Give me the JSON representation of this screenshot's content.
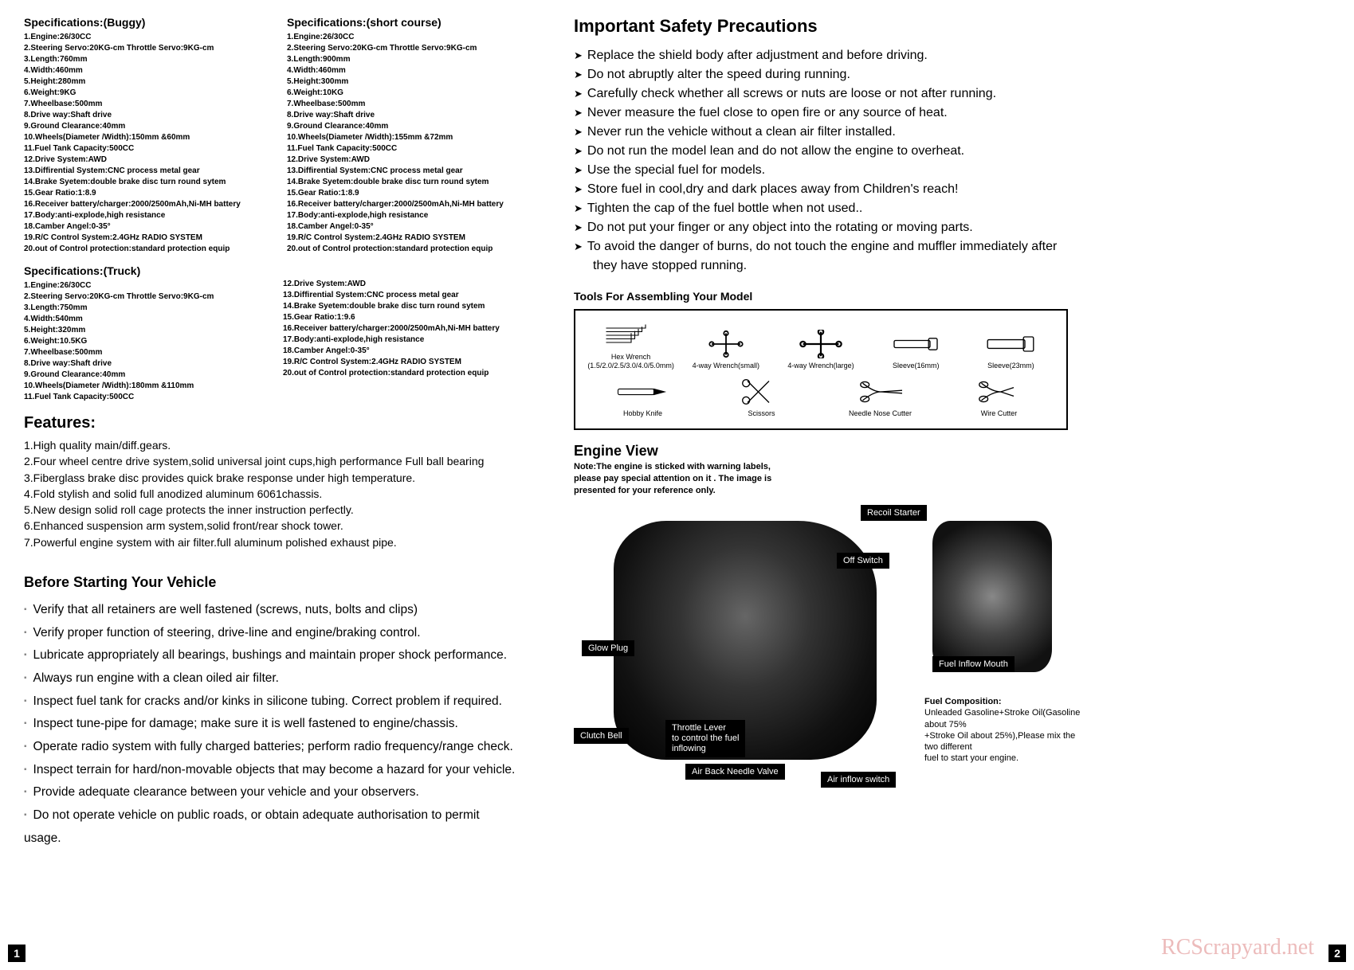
{
  "specs_buggy": {
    "title": "Specifications:(Buggy)",
    "items": [
      "1.Engine:26/30CC",
      "2.Steering Servo:20KG-cm  Throttle Servo:9KG-cm",
      "3.Length:760mm",
      "4.Width:460mm",
      "5.Height:280mm",
      "6.Weight:9KG",
      "7.Wheelbase:500mm",
      "8.Drive way:Shaft drive",
      "9.Ground Clearance:40mm",
      "10.Wheels(Diameter /Width):150mm &60mm",
      "11.Fuel Tank Capacity:500CC",
      "12.Drive System:AWD",
      "13.Diffirential System:CNC process metal gear",
      "14.Brake Syetem:double brake disc turn  round sytem",
      "15.Gear Ratio:1:8.9",
      "16.Receiver battery/charger:2000/2500mAh,Ni-MH battery",
      "17.Body:anti-explode,high resistance",
      "18.Camber Angel:0-35°",
      "19.R/C Control System:2.4GHz RADIO SYSTEM",
      "20.out of Control protection:standard protection equip"
    ]
  },
  "specs_short_course": {
    "title": "Specifications:(short course)",
    "items": [
      "1.Engine:26/30CC",
      "2.Steering Servo:20KG-cm  Throttle Servo:9KG-cm",
      "3.Length:900mm",
      "4.Width:460mm",
      "5.Height:300mm",
      "6.Weight:10KG",
      "7.Wheelbase:500mm",
      "8.Drive way:Shaft drive",
      "9.Ground Clearance:40mm",
      "10.Wheels(Diameter /Width):155mm &72mm",
      "11.Fuel Tank Capacity:500CC",
      "12.Drive System:AWD",
      "13.Diffirential System:CNC process metal gear",
      "14.Brake Syetem:double brake disc turn  round sytem",
      "15.Gear Ratio:1:8.9",
      "16.Receiver battery/charger:2000/2500mAh,Ni-MH battery",
      "17.Body:anti-explode,high resistance",
      "18.Camber Angel:0-35°",
      "19.R/C Control System:2.4GHz RADIO SYSTEM",
      "20.out of Control protection:standard protection equip"
    ]
  },
  "specs_truck": {
    "title": "Specifications:(Truck)",
    "left": [
      "1.Engine:26/30CC",
      "2.Steering Servo:20KG-cm  Throttle Servo:9KG-cm",
      "3.Length:750mm",
      "4.Width:540mm",
      "5.Height:320mm",
      "6.Weight:10.5KG",
      "7.Wheelbase:500mm",
      "8.Drive way:Shaft drive",
      "9.Ground Clearance:40mm",
      "10.Wheels(Diameter /Width):180mm &110mm",
      "11.Fuel Tank Capacity:500CC"
    ],
    "right": [
      "12.Drive System:AWD",
      "13.Diffirential System:CNC process metal gear",
      "14.Brake Syetem:double brake disc turn  round sytem",
      "15.Gear Ratio:1:9.6",
      "16.Receiver battery/charger:2000/2500mAh,Ni-MH battery",
      "17.Body:anti-explode,high resistance",
      "18.Camber Angel:0-35°",
      "19.R/C Control System:2.4GHz RADIO SYSTEM",
      "20.out of Control protection:standard protection equip"
    ]
  },
  "features": {
    "title": "Features:",
    "items": [
      "1.High quality main/diff.gears.",
      "2.Four wheel centre drive system,solid universal joint cups,high performance Full ball bearing",
      "3.Fiberglass brake disc provides quick brake response under high temperature.",
      "4.Fold stylish and solid full anodized aluminum 6061chassis.",
      "5.New design solid roll cage protects the inner instruction perfectly.",
      "6.Enhanced suspension arm system,solid front/rear shock tower.",
      "7.Powerful engine system with air filter.full aluminum polished exhaust pipe."
    ]
  },
  "before": {
    "title": "Before Starting Your Vehicle",
    "items": [
      "Verify that all retainers are well fastened (screws, nuts, bolts and clips)",
      "Verify proper function of steering, drive-line and engine/braking control.",
      "Lubricate appropriately all bearings, bushings and maintain proper shock performance.",
      "Always run engine with a clean oiled air filter.",
      "Inspect fuel tank for cracks and/or kinks in silicone tubing. Correct problem if required.",
      "Inspect tune-pipe for damage; make sure it is well fastened to engine/chassis.",
      "Operate radio system with fully charged batteries; perform radio  frequency/range check.",
      "Inspect terrain for hard/non-movable objects that may become a hazard for your vehicle.",
      "Provide adequate clearance between your vehicle and your observers.",
      "Do not operate vehicle on public roads, or obtain adequate authorisation to permit usage."
    ]
  },
  "safety": {
    "title": "Important Safety Precautions",
    "items": [
      "Replace the shield body after adjustment and before driving.",
      "Do not abruptly alter the speed during running.",
      "Carefully check whether all screws or nuts are loose or not after running.",
      "Never measure the fuel close to open fire or any source of heat.",
      "Never run the vehicle without a clean air filter installed.",
      "Do not run the model lean and do not allow the engine to overheat.",
      "Use the special fuel for models.",
      "Store fuel in cool,dry and dark places away from Children's reach!",
      "Tighten the cap of the fuel bottle when not used..",
      "Do not put your finger or any object into the rotating or moving parts.",
      "To avoid the danger of burns, do not touch the engine and muffler immediately after",
      "they have stopped running."
    ]
  },
  "tools": {
    "title": "Tools For Assembling Your Model",
    "row1": [
      {
        "label": "Hex Wrench\n(1.5/2.0/2.5/3.0/4.0/5.0mm)"
      },
      {
        "label": "4-way Wrench(small)"
      },
      {
        "label": "4-way Wrench(large)"
      },
      {
        "label": "Sleeve(16mm)"
      },
      {
        "label": "Sleeve(23mm)"
      }
    ],
    "row2": [
      {
        "label": "Hobby Knife"
      },
      {
        "label": "Scissors"
      },
      {
        "label": "Needle Nose Cutter"
      },
      {
        "label": "Wire Cutter"
      }
    ]
  },
  "engine": {
    "title": "Engine View",
    "note": "Note:The engine is sticked  with warning labels,\nplease pay special   attention on it . The image is\npresented for your reference only.",
    "callouts": {
      "recoil": "Recoil Starter",
      "off": "Off Switch",
      "glow": "Glow Plug",
      "fuelmouth": "Fuel Inflow Mouth",
      "clutch": "Clutch Bell",
      "throttle": "Throttle Lever\nto control  the fuel\ninflowing",
      "airback": "Air Back Needle Valve",
      "airswitch": "Air inflow switch"
    },
    "fuel_comp": {
      "title": "Fuel Composition:",
      "text": "Unleaded Gasoline+Stroke Oil(Gasoline about 75%\n+Stroke Oil  about 25%),Please mix the two different\nfuel to start your engine."
    }
  },
  "page_left": "1",
  "page_right": "2",
  "watermark": "RCScrapyard.net"
}
